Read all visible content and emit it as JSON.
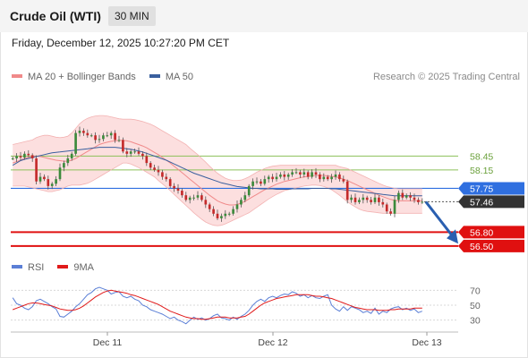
{
  "header": {
    "title": "Crude Oil (WTI)",
    "interval": "30 MIN"
  },
  "timestamp": "Friday, December 12, 2025 10:27:20 PM CET",
  "legend": {
    "main": [
      {
        "label": "MA 20 + Bollinger Bands",
        "color": "#f08a8a"
      },
      {
        "label": "MA 50",
        "color": "#3a5f9e"
      }
    ],
    "rsi": [
      {
        "label": "RSI",
        "color": "#5b7fd6"
      },
      {
        "label": "9MA",
        "color": "#e01a1a"
      }
    ]
  },
  "credit": "Research © 2025 Trading Central",
  "chart_data": [
    {
      "type": "candlestick",
      "title": "Crude Oil (WTI)",
      "interval": "30 MIN",
      "x_ticks": [
        "Dec 11",
        "Dec 12",
        "Dec 13"
      ],
      "ylim": [
        56.4,
        59.7
      ],
      "levels": [
        {
          "label": "58.45",
          "value": 58.45,
          "kind": "resistance",
          "color": "#8cc05a"
        },
        {
          "label": "58.15",
          "value": 58.15,
          "kind": "resistance",
          "color": "#8cc05a"
        },
        {
          "label": "57.75",
          "value": 57.75,
          "kind": "pivot",
          "color": "#2f6fe0"
        },
        {
          "label": "57.46",
          "value": 57.46,
          "kind": "last-price",
          "color": "#333333"
        },
        {
          "label": "56.80",
          "value": 56.8,
          "kind": "support",
          "color": "#e01010"
        },
        {
          "label": "56.50",
          "value": 56.5,
          "kind": "support",
          "color": "#e01010"
        }
      ],
      "close": [
        58.4,
        58.45,
        58.42,
        58.5,
        58.47,
        58.4,
        57.9,
        58.0,
        57.95,
        57.8,
        57.85,
        57.95,
        58.2,
        58.3,
        58.4,
        58.5,
        58.95,
        59.0,
        58.95,
        58.9,
        58.9,
        58.8,
        58.82,
        58.9,
        58.9,
        58.95,
        58.8,
        58.8,
        58.55,
        58.5,
        58.55,
        58.55,
        58.5,
        58.45,
        58.3,
        58.2,
        58.15,
        58.1,
        58.0,
        57.95,
        57.8,
        57.75,
        57.7,
        57.6,
        57.5,
        57.55,
        57.55,
        57.6,
        57.5,
        57.4,
        57.3,
        57.2,
        57.1,
        57.15,
        57.2,
        57.2,
        57.3,
        57.4,
        57.5,
        57.6,
        57.8,
        57.9,
        57.9,
        57.85,
        57.95,
        58.0,
        57.95,
        58.0,
        58.05,
        58.0,
        58.05,
        58.1,
        58.1,
        58.05,
        58.1,
        58.0,
        58.1,
        58.05,
        57.95,
        58.0,
        57.95,
        58.0,
        58.05,
        57.95,
        57.9,
        57.5,
        57.55,
        57.45,
        57.5,
        57.55,
        57.5,
        57.45,
        57.55,
        57.45,
        57.4,
        57.25,
        57.2,
        57.5,
        57.65,
        57.55,
        57.6,
        57.55,
        57.5,
        57.45,
        57.46
      ],
      "ma20": [
        58.3,
        58.33,
        58.36,
        58.4,
        58.42,
        58.45,
        58.45,
        58.44,
        58.42,
        58.4,
        58.38,
        58.36,
        58.35,
        58.34,
        58.34,
        58.36,
        58.4,
        58.45,
        58.5,
        58.55,
        58.6,
        58.65,
        58.7,
        58.73,
        58.75,
        58.77,
        58.78,
        58.79,
        58.79,
        58.78,
        58.76,
        58.73,
        58.7,
        58.67,
        58.63,
        58.58,
        58.53,
        58.48,
        58.42,
        58.36,
        58.3,
        58.23,
        58.16,
        58.09,
        58.02,
        57.95,
        57.88,
        57.81,
        57.74,
        57.67,
        57.6,
        57.54,
        57.48,
        57.44,
        57.41,
        57.39,
        57.39,
        57.4,
        57.43,
        57.47,
        57.52,
        57.57,
        57.62,
        57.67,
        57.72,
        57.76,
        57.8,
        57.84,
        57.87,
        57.9,
        57.92,
        57.94,
        57.96,
        57.98,
        58.0,
        58.01,
        58.02,
        58.03,
        58.03,
        58.03,
        58.02,
        58.01,
        58.0,
        57.98,
        57.95,
        57.92,
        57.88,
        57.84,
        57.8,
        57.76,
        57.72,
        57.68,
        57.64,
        57.6,
        57.57,
        57.54,
        57.51,
        57.49,
        57.48,
        57.48,
        57.48,
        57.48,
        57.48,
        57.48,
        57.48
      ],
      "bb_upper": [
        58.7,
        58.72,
        58.74,
        58.76,
        58.78,
        58.8,
        58.85,
        58.88,
        58.9,
        58.9,
        58.88,
        58.86,
        58.85,
        58.86,
        58.88,
        58.95,
        59.05,
        59.15,
        59.22,
        59.27,
        59.3,
        59.32,
        59.33,
        59.33,
        59.32,
        59.3,
        59.28,
        59.26,
        59.25,
        59.25,
        59.25,
        59.24,
        59.22,
        59.2,
        59.17,
        59.14,
        59.1,
        59.05,
        59.0,
        58.95,
        58.9,
        58.85,
        58.8,
        58.75,
        58.7,
        58.62,
        58.55,
        58.48,
        58.4,
        58.32,
        58.23,
        58.15,
        58.08,
        58.02,
        57.97,
        57.94,
        57.92,
        57.92,
        57.93,
        57.96,
        58.0,
        58.05,
        58.1,
        58.14,
        58.18,
        58.21,
        58.23,
        58.24,
        58.25,
        58.25,
        58.25,
        58.25,
        58.25,
        58.25,
        58.25,
        58.25,
        58.25,
        58.25,
        58.25,
        58.25,
        58.25,
        58.25,
        58.25,
        58.22,
        58.2,
        58.18,
        58.14,
        58.1,
        58.06,
        58.02,
        57.98,
        57.94,
        57.9,
        57.86,
        57.82,
        57.79,
        57.77,
        57.75,
        57.74,
        57.74,
        57.74,
        57.74,
        57.74,
        57.74,
        57.74
      ],
      "bb_lower": [
        57.8,
        57.8,
        57.8,
        57.8,
        57.78,
        57.76,
        57.74,
        57.72,
        57.7,
        57.68,
        57.68,
        57.7,
        57.72,
        57.76,
        57.8,
        57.82,
        57.82,
        57.82,
        57.84,
        57.86,
        57.9,
        57.95,
        58.0,
        58.05,
        58.1,
        58.15,
        58.2,
        58.25,
        58.3,
        58.3,
        58.28,
        58.24,
        58.2,
        58.15,
        58.1,
        58.05,
        58.0,
        57.92,
        57.85,
        57.78,
        57.7,
        57.62,
        57.54,
        57.46,
        57.38,
        57.3,
        57.22,
        57.15,
        57.08,
        57.02,
        56.98,
        56.95,
        56.94,
        56.95,
        56.98,
        57.02,
        57.06,
        57.1,
        57.14,
        57.18,
        57.22,
        57.28,
        57.34,
        57.4,
        57.46,
        57.52,
        57.57,
        57.62,
        57.66,
        57.7,
        57.72,
        57.74,
        57.76,
        57.78,
        57.8,
        57.81,
        57.82,
        57.82,
        57.81,
        57.79,
        57.76,
        57.72,
        57.66,
        57.6,
        57.53,
        57.46,
        57.4,
        57.35,
        57.3,
        57.27,
        57.25,
        57.24,
        57.23,
        57.22,
        57.21,
        57.21,
        57.21,
        57.21,
        57.21,
        57.21,
        57.21,
        57.21,
        57.21,
        57.21,
        57.21
      ],
      "ma50": [
        58.25,
        58.3,
        58.35,
        58.38,
        58.4,
        58.42,
        58.44,
        58.46,
        58.48,
        58.5,
        58.52,
        58.53,
        58.54,
        58.55,
        58.56,
        58.57,
        58.58,
        58.59,
        58.6,
        58.61,
        58.62,
        58.63,
        58.64,
        58.64,
        58.64,
        58.64,
        58.64,
        58.63,
        58.62,
        58.61,
        58.6,
        58.58,
        58.56,
        58.54,
        58.51,
        58.48,
        58.45,
        58.42,
        58.39,
        58.36,
        58.32,
        58.28,
        58.24,
        58.2,
        58.16,
        58.12,
        58.08,
        58.05,
        58.02,
        57.99,
        57.96,
        57.93,
        57.9,
        57.87,
        57.85,
        57.83,
        57.81,
        57.79,
        57.78,
        57.77,
        57.76,
        57.75,
        57.75,
        57.74,
        57.74,
        57.74,
        57.74,
        57.73,
        57.73,
        57.73,
        57.73,
        57.74,
        57.74,
        57.74,
        57.74,
        57.74,
        57.75,
        57.75,
        57.75,
        57.75,
        57.75,
        57.74,
        57.74,
        57.73,
        57.72,
        57.71,
        57.7,
        57.69,
        57.68,
        57.67,
        57.66,
        57.65,
        57.64,
        57.63,
        57.62,
        57.61,
        57.6,
        57.59,
        57.59,
        57.59,
        57.59,
        57.59,
        57.59,
        57.59,
        57.59
      ]
    },
    {
      "type": "line",
      "title": "RSI",
      "yticks": [
        70,
        50,
        30
      ],
      "ylim": [
        20,
        80
      ],
      "series": [
        {
          "name": "RSI",
          "color": "#5b7fd6",
          "values": [
            60,
            52,
            50,
            46,
            44,
            48,
            56,
            58,
            55,
            52,
            48,
            45,
            35,
            34,
            38,
            42,
            48,
            52,
            58,
            64,
            67,
            72,
            74,
            72,
            70,
            65,
            67,
            68,
            62,
            60,
            62,
            58,
            56,
            50,
            48,
            44,
            42,
            40,
            38,
            35,
            32,
            34,
            30,
            28,
            25,
            30,
            34,
            31,
            33,
            30,
            32,
            36,
            38,
            33,
            32,
            30,
            34,
            31,
            35,
            38,
            43,
            50,
            55,
            58,
            55,
            60,
            62,
            60,
            63,
            65,
            64,
            68,
            66,
            62,
            64,
            60,
            63,
            60,
            59,
            62,
            64,
            50,
            45,
            42,
            48,
            43,
            48,
            46,
            44,
            40,
            42,
            39,
            46,
            38,
            42,
            40,
            45,
            47,
            48,
            44,
            46,
            43,
            45,
            40,
            42
          ]
        },
        {
          "name": "9MA",
          "color": "#e01a1a",
          "values": [
            44,
            46,
            48,
            50,
            52,
            53,
            53,
            52,
            51,
            50,
            49,
            47,
            45,
            44,
            43,
            43,
            44,
            46,
            49,
            53,
            57,
            61,
            64,
            67,
            69,
            70,
            69,
            68,
            67,
            66,
            64,
            63,
            61,
            59,
            57,
            55,
            53,
            51,
            48,
            45,
            42,
            40,
            38,
            36,
            34,
            33,
            32,
            32,
            31,
            31,
            32,
            33,
            34,
            34,
            34,
            33,
            33,
            33,
            34,
            35,
            38,
            42,
            46,
            50,
            53,
            55,
            57,
            59,
            60,
            61,
            62,
            63,
            64,
            64,
            64,
            64,
            63,
            62,
            62,
            61,
            60,
            59,
            57,
            55,
            53,
            51,
            49,
            47,
            46,
            45,
            44,
            44,
            44,
            43,
            43,
            43,
            44,
            44,
            45,
            45,
            45,
            45,
            46,
            46,
            46
          ]
        }
      ]
    }
  ]
}
